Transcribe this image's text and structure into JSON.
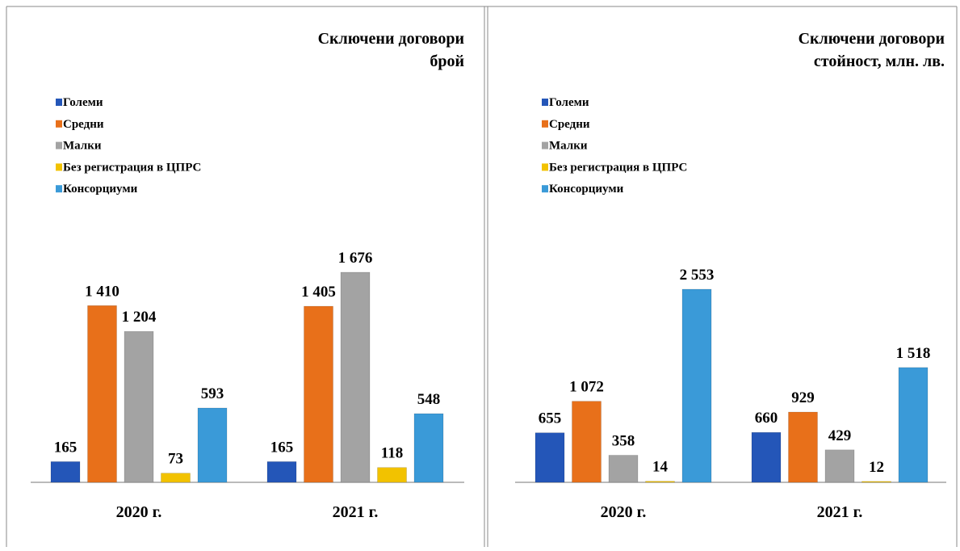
{
  "chart_data": [
    {
      "type": "bar",
      "title": "Сключени договори",
      "subtitle": "брой",
      "categories": [
        "2020 г.",
        "2021 г."
      ],
      "series": [
        {
          "name": "Големи",
          "color": "#2456b8",
          "values": [
            165,
            165
          ],
          "value_labels": [
            "165",
            "165"
          ]
        },
        {
          "name": "Средни",
          "color": "#e8701a",
          "values": [
            1410,
            1405
          ],
          "value_labels": [
            "1 410",
            "1 405"
          ]
        },
        {
          "name": "Малки",
          "color": "#a3a3a3",
          "values": [
            1204,
            1676
          ],
          "value_labels": [
            "1 204",
            "1 676"
          ]
        },
        {
          "name": "Без регистрация в ЦПРС",
          "color": "#f2c200",
          "values": [
            73,
            118
          ],
          "value_labels": [
            "73",
            "118"
          ]
        },
        {
          "name": "Консорциуми",
          "color": "#3a9ad8",
          "values": [
            593,
            548
          ],
          "value_labels": [
            "593",
            "548"
          ]
        }
      ]
    },
    {
      "type": "bar",
      "title": "Сключени договори",
      "subtitle": "стойност, млн. лв.",
      "categories": [
        "2020 г.",
        "2021 г."
      ],
      "series": [
        {
          "name": "Големи",
          "color": "#2456b8",
          "values": [
            655,
            660
          ],
          "value_labels": [
            "655",
            "660"
          ]
        },
        {
          "name": "Средни",
          "color": "#e8701a",
          "values": [
            1072,
            929
          ],
          "value_labels": [
            "1 072",
            "929"
          ]
        },
        {
          "name": "Малки",
          "color": "#a3a3a3",
          "values": [
            358,
            429
          ],
          "value_labels": [
            "358",
            "429"
          ]
        },
        {
          "name": "Без регистрация в ЦПРС",
          "color": "#f2c200",
          "values": [
            14,
            12
          ],
          "value_labels": [
            "14",
            "12"
          ]
        },
        {
          "name": "Консорциуми",
          "color": "#3a9ad8",
          "values": [
            2553,
            1518
          ],
          "value_labels": [
            "2 553",
            "1 518"
          ]
        }
      ]
    }
  ]
}
